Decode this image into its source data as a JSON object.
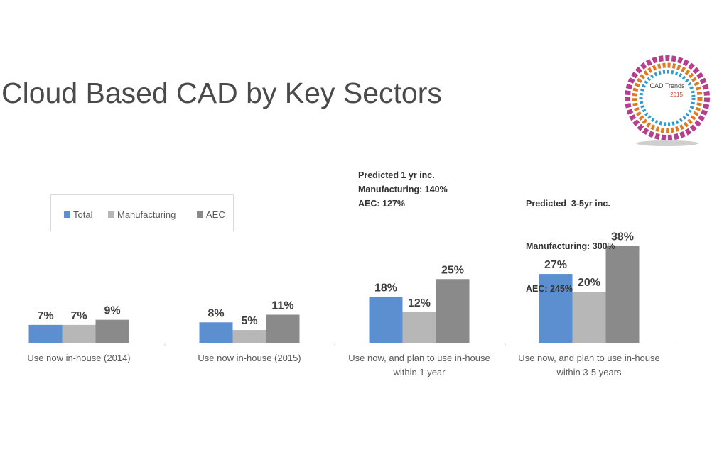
{
  "slide": {
    "title": "Cloud Based CAD by Key Sectors"
  },
  "logo": {
    "line1": "CAD Trends",
    "line2": "2015"
  },
  "chart_data": {
    "type": "bar",
    "title": "Cloud Based CAD by Key Sectors",
    "xlabel": "",
    "ylabel": "",
    "ylim": [
      0,
      40
    ],
    "grid": false,
    "legend": "top-left",
    "categories": [
      [
        "Use now in-house (2014)"
      ],
      [
        "Use now in-house (2015)"
      ],
      [
        "Use now, and plan to use in-house",
        "within 1 year"
      ],
      [
        "Use now, and plan to use in-house",
        "within 3-5 years"
      ]
    ],
    "series": [
      {
        "name": "Total",
        "color": "#5b8fd0",
        "values": [
          7,
          8,
          18,
          27
        ],
        "labels": [
          "7%",
          "8%",
          "18%",
          "27%"
        ]
      },
      {
        "name": "Manufacturing",
        "color": "#b7b7b7",
        "values": [
          7,
          5,
          12,
          20
        ],
        "labels": [
          "7%",
          "5%",
          "12%",
          "20%"
        ]
      },
      {
        "name": "AEC",
        "color": "#8a8a8a",
        "values": [
          9,
          11,
          25,
          38
        ],
        "labels": [
          "9%",
          "11%",
          "25%",
          "38%"
        ]
      }
    ],
    "annotations": [
      {
        "category": 2,
        "lines": [
          "Predicted 1 yr inc.",
          "Manufacturing: 140%",
          "AEC: 127%"
        ]
      },
      {
        "category": 3,
        "lines": [
          "Predicted  3-5yr inc.",
          "Manufacturing: 300%",
          "AEC: 245%"
        ]
      }
    ]
  }
}
